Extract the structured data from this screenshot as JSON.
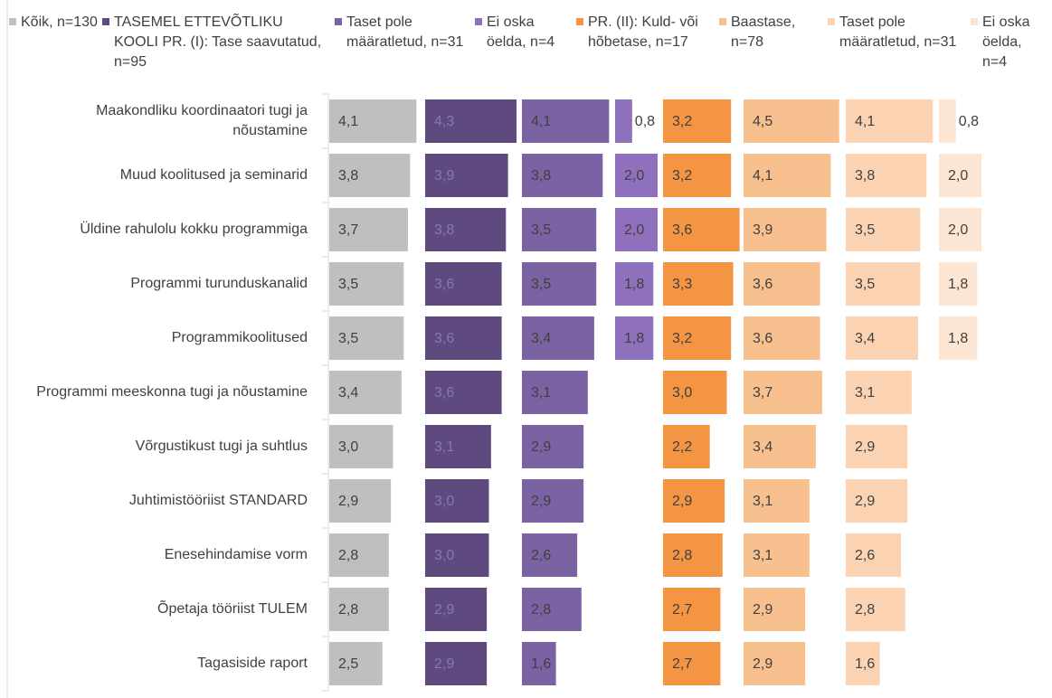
{
  "chart_data": {
    "type": "bar",
    "categories": [
      "Maakondliku koordinaatori tugi ja nõustamine",
      "Muud koolitused ja seminarid",
      "Üldine rahulolu kokku programmiga",
      "Programmi turunduskanalid",
      "Programmikoolitused",
      "Programmi meeskonna tugi ja nõustamine",
      "Võrgustikust tugi ja suhtlus",
      "Juhtimistööriist STANDARD",
      "Enesehindamise vorm",
      "Õpetaja tööriist TULEM",
      "Tagasiside raport"
    ],
    "series": [
      {
        "name": "Kõik, n=130",
        "color": "#bfbfbf",
        "values": [
          4.1,
          3.8,
          3.7,
          3.5,
          3.5,
          3.4,
          3.0,
          2.9,
          2.8,
          2.8,
          2.5
        ],
        "value_labels": [
          "4,1",
          "3,8",
          "3,7",
          "3,5",
          "3,5",
          "3,4",
          "3,0",
          "2,9",
          "2,8",
          "2,8",
          "2,5"
        ]
      },
      {
        "name": "TASEMEL ETTEVÕTLIKU KOOLI PR. (I): Tase saavutatud, n=95",
        "color": "#5e4a7e",
        "values": [
          4.3,
          3.9,
          3.8,
          3.6,
          3.6,
          3.6,
          3.1,
          3.0,
          3.0,
          2.9,
          2.9
        ],
        "value_labels": [
          "4,3",
          "3,9",
          "3,8",
          "3,6",
          "3,6",
          "3,6",
          "3,1",
          "3,0",
          "3,0",
          "2,9",
          "2,9"
        ]
      },
      {
        "name": "Taset pole määratletud, n=31",
        "color": "#7b62a3",
        "values": [
          4.1,
          3.8,
          3.5,
          3.5,
          3.4,
          3.1,
          2.9,
          2.9,
          2.6,
          2.8,
          1.6
        ],
        "value_labels": [
          "4,1",
          "3,8",
          "3,5",
          "3,5",
          "3,4",
          "3,1",
          "2,9",
          "2,9",
          "2,6",
          "2,8",
          "1,6"
        ]
      },
      {
        "name": "Ei oska öelda, n=4",
        "color": "#8e70bd",
        "values": [
          0.8,
          2.0,
          2.0,
          1.8,
          1.8,
          null,
          null,
          null,
          null,
          null,
          null
        ],
        "value_labels": [
          "0,8",
          "2,0",
          "2,0",
          "1,8",
          "1,8",
          null,
          null,
          null,
          null,
          null,
          null
        ]
      },
      {
        "name": "PR. (II): Kuld- või hõbetase, n=17",
        "color": "#f39542",
        "values": [
          3.2,
          3.2,
          3.6,
          3.3,
          3.2,
          3.0,
          2.2,
          2.9,
          2.8,
          2.7,
          2.7
        ],
        "value_labels": [
          "3,2",
          "3,2",
          "3,6",
          "3,3",
          "3,2",
          "3,0",
          "2,2",
          "2,9",
          "2,8",
          "2,7",
          "2,7"
        ]
      },
      {
        "name": "Baastase, n=78",
        "color": "#f8c08f",
        "values": [
          4.5,
          4.1,
          3.9,
          3.6,
          3.6,
          3.7,
          3.4,
          3.1,
          3.1,
          2.9,
          2.9
        ],
        "value_labels": [
          "4,5",
          "4,1",
          "3,9",
          "3,6",
          "3,6",
          "3,7",
          "3,4",
          "3,1",
          "3,1",
          "2,9",
          "2,9"
        ]
      },
      {
        "name": "Taset pole määratletud, n=31",
        "color": "#fbd3b3",
        "values": [
          4.1,
          3.8,
          3.5,
          3.5,
          3.4,
          3.1,
          2.9,
          2.9,
          2.6,
          2.8,
          1.6
        ],
        "value_labels": [
          "4,1",
          "3,8",
          "3,5",
          "3,5",
          "3,4",
          "3,1",
          "2,9",
          "2,9",
          "2,6",
          "2,8",
          "1,6"
        ]
      },
      {
        "name": "Ei oska öelda, n=4",
        "color": "#fde5d3",
        "values": [
          0.8,
          2.0,
          2.0,
          1.8,
          1.8,
          null,
          null,
          null,
          null,
          null,
          null
        ],
        "value_labels": [
          "0,8",
          "2,0",
          "2,0",
          "1,8",
          "1,8",
          null,
          null,
          null,
          null,
          null,
          null
        ]
      }
    ],
    "legend": "top"
  }
}
